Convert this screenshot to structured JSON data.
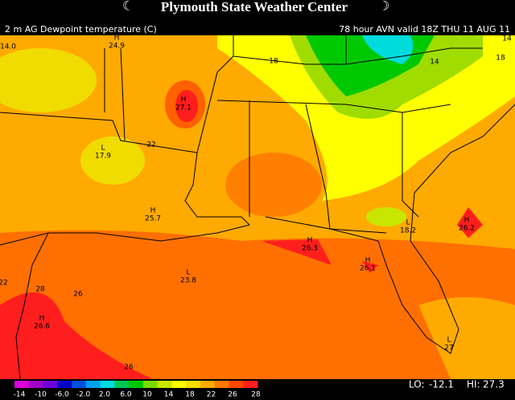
{
  "header": {
    "title": "Plymouth State Weather Center",
    "field": "2 m AG Dewpoint temperature (C)",
    "valid": "78 hour AVN valid 18Z THU 11 AUG 11"
  },
  "map": {
    "labels": [
      {
        "value": "14.0"
      },
      {
        "symbol": "H",
        "value": "24.9"
      },
      {
        "value": "18"
      },
      {
        "value": "14"
      },
      {
        "value": "18"
      },
      {
        "value": "14"
      },
      {
        "symbol": "H",
        "value": "27.1"
      },
      {
        "value": "22"
      },
      {
        "symbol": "L",
        "value": "17.9"
      },
      {
        "symbol": "H",
        "value": "25.7"
      },
      {
        "symbol": "L",
        "value": "18.2"
      },
      {
        "symbol": "H",
        "value": "26.2"
      },
      {
        "symbol": "H",
        "value": "26.3"
      },
      {
        "symbol": "H",
        "value": "26.1"
      },
      {
        "symbol": "L",
        "value": "23.8"
      },
      {
        "value": "28"
      },
      {
        "value": "26"
      },
      {
        "value": "22"
      },
      {
        "symbol": "H",
        "value": "26.6"
      },
      {
        "value": "26"
      },
      {
        "symbol": "L",
        "value": "27"
      }
    ]
  },
  "colorbar": {
    "ticks": [
      "-14",
      "-10",
      "-6.0",
      "-2.0",
      "2.0",
      "6.0",
      "10",
      "14",
      "18",
      "22",
      "26",
      "28"
    ]
  },
  "extremes": {
    "lo_label": "LO:",
    "lo": "-12.1",
    "hi_label": "HI:",
    "hi": "27.3"
  }
}
